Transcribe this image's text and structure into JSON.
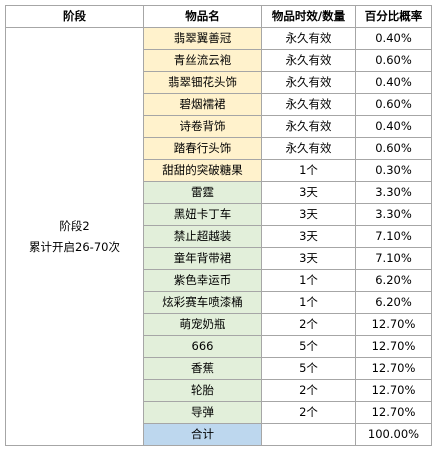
{
  "headers": [
    "阶段",
    "物品名",
    "物品时效/数量",
    "百分比概率"
  ],
  "stage": {
    "line1": "阶段2",
    "line2": "累计开启26-70次"
  },
  "rows": [
    {
      "name": "翡翠翼善冠",
      "qty": "永久有效",
      "pct": "0.40%",
      "color": "#fff2cc"
    },
    {
      "name": "青丝流云袍",
      "qty": "永久有效",
      "pct": "0.60%",
      "color": "#fff2cc"
    },
    {
      "name": "翡翠钿花头饰",
      "qty": "永久有效",
      "pct": "0.40%",
      "color": "#fff2cc"
    },
    {
      "name": "碧烟襦裙",
      "qty": "永久有效",
      "pct": "0.60%",
      "color": "#fff2cc"
    },
    {
      "name": "诗卷背饰",
      "qty": "永久有效",
      "pct": "0.40%",
      "color": "#fff2cc"
    },
    {
      "name": "踏春行头饰",
      "qty": "永久有效",
      "pct": "0.60%",
      "color": "#fff2cc"
    },
    {
      "name": "甜甜的突破糖果",
      "qty": "1个",
      "pct": "0.30%",
      "color": "#fff2cc"
    },
    {
      "name": "雷霆",
      "qty": "3天",
      "pct": "3.30%",
      "color": "#e2efda"
    },
    {
      "name": "黑妞卡丁车",
      "qty": "3天",
      "pct": "3.30%",
      "color": "#e2efda"
    },
    {
      "name": "禁止超越装",
      "qty": "3天",
      "pct": "7.10%",
      "color": "#e2efda"
    },
    {
      "name": "童年背带裙",
      "qty": "3天",
      "pct": "7.10%",
      "color": "#e2efda"
    },
    {
      "name": "紫色幸运币",
      "qty": "1个",
      "pct": "6.20%",
      "color": "#e2efda"
    },
    {
      "name": "炫彩赛车喷漆桶",
      "qty": "1个",
      "pct": "6.20%",
      "color": "#e2efda"
    },
    {
      "name": "萌宠奶瓶",
      "qty": "2个",
      "pct": "12.70%",
      "color": "#e2efda"
    },
    {
      "name": "666",
      "qty": "5个",
      "pct": "12.70%",
      "color": "#e2efda"
    },
    {
      "name": "香蕉",
      "qty": "5个",
      "pct": "12.70%",
      "color": "#e2efda"
    },
    {
      "name": "轮胎",
      "qty": "2个",
      "pct": "12.70%",
      "color": "#e2efda"
    },
    {
      "name": "导弹",
      "qty": "2个",
      "pct": "12.70%",
      "color": "#e2efda"
    }
  ],
  "total": {
    "label": "合计",
    "qty": "",
    "pct": "100.00%",
    "color": "#bdd7ee"
  }
}
